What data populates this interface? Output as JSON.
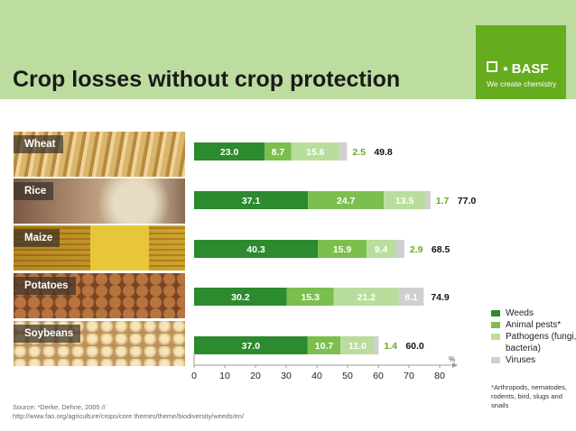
{
  "title": "Crop losses without crop protection",
  "brand": {
    "name": "BASF",
    "tagline": "We create chemistry"
  },
  "colors": {
    "header_bg": "#bddca0",
    "logo_bg": "#65ac1e",
    "weeds": "#2c8a2f",
    "animal_pests": "#7cbf4f",
    "pathogens": "#b9dd9c",
    "viruses": "#cfcfcf"
  },
  "crop_icons": [
    "wheat-photo",
    "rice-photo",
    "maize-photo",
    "potatoes-photo",
    "soybeans-photo"
  ],
  "chart_data": {
    "type": "bar",
    "orientation": "horizontal",
    "stacked": true,
    "categories": [
      "Wheat",
      "Rice",
      "Maize",
      "Potatoes",
      "Soybeans"
    ],
    "series": [
      {
        "name": "Weeds",
        "values": [
          23.0,
          37.1,
          40.3,
          30.2,
          37.0
        ]
      },
      {
        "name": "Animal pests*",
        "values": [
          8.7,
          24.7,
          15.9,
          15.3,
          10.7
        ]
      },
      {
        "name": "Pathogens (fungi, bacteria)",
        "values": [
          15.6,
          13.5,
          9.4,
          21.2,
          11.0
        ]
      },
      {
        "name": "Viruses",
        "values": [
          2.5,
          1.7,
          2.9,
          8.1,
          1.4
        ]
      }
    ],
    "labels": [
      [
        "23.0",
        "8.7",
        "15.6",
        "2.5"
      ],
      [
        "37.1",
        "24.7",
        "13.5",
        "1.7"
      ],
      [
        "40.3",
        "15.9",
        "9.4",
        "2.9"
      ],
      [
        "30.2",
        "15.3",
        "21.2",
        "8.1"
      ],
      [
        "37.0",
        "10.7",
        "11.0",
        "1.4"
      ]
    ],
    "totals": [
      "49.8",
      "77.0",
      "68.5",
      "74.9",
      "60.0"
    ],
    "xlim": [
      0,
      80
    ],
    "xticks": [
      "0",
      "10",
      "20",
      "30",
      "40",
      "50",
      "60",
      "70",
      "80"
    ],
    "xunit": "%",
    "grid": false,
    "legend_position": "right"
  },
  "footnote": "*Arthropods, nematodes, rodents, bird, slugs and snails",
  "source": {
    "line1": "Source: *Derke, Dehne, 2005 //",
    "line2": "http://www.fao.org/agriculture/crops/core themes/theme/biodiversity/weeds/en/"
  }
}
